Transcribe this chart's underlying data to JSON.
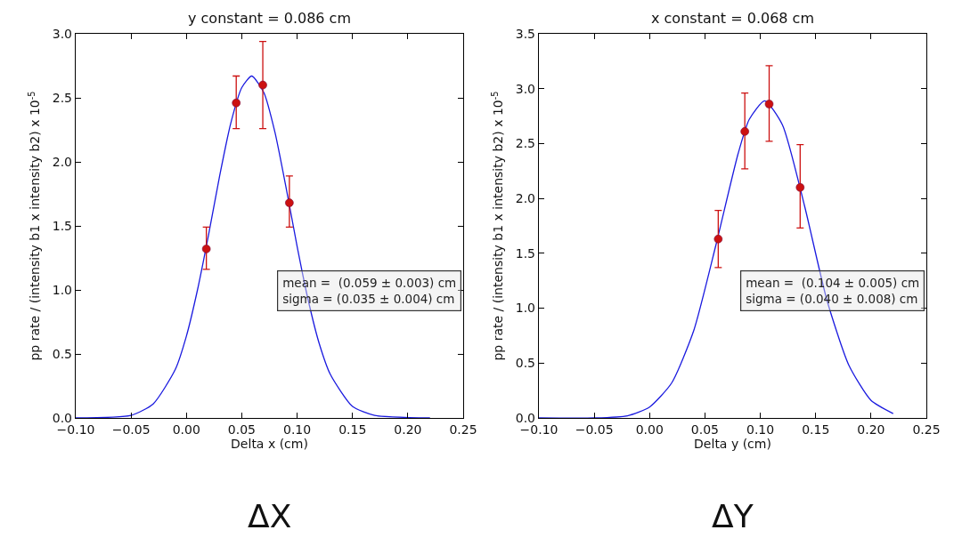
{
  "chart_data": [
    {
      "type": "scatter",
      "title": "y constant = 0.086 cm",
      "xlabel": "Delta x (cm)",
      "ylabel": "pp rate / (intensity b1 x intensity b2) x 10$^{-5}$",
      "xlim": [
        -0.1,
        0.25
      ],
      "xticks": [
        {
          "value": -0.1,
          "label": "−0.10"
        },
        {
          "value": -0.05,
          "label": "−0.05"
        },
        {
          "value": 0,
          "label": "0.00"
        },
        {
          "value": 0.05,
          "label": "0.05"
        },
        {
          "value": 0.1,
          "label": "0.10"
        },
        {
          "value": 0.15,
          "label": "0.15"
        },
        {
          "value": 0.2,
          "label": "0.20"
        },
        {
          "value": 0.25,
          "label": "0.25"
        }
      ],
      "ylim": [
        0,
        3.0
      ],
      "yticks": [
        {
          "value": 0,
          "label": "0.0"
        },
        0.5,
        {
          "value": 1,
          "label": "1.0"
        },
        1.5,
        {
          "value": 2,
          "label": "2.0"
        },
        2.5,
        {
          "value": 3,
          "label": "3.0"
        }
      ],
      "grid": false,
      "series": [
        {
          "type": "line",
          "color": "#1a1adf",
          "marker": "none",
          "line_style": "solid",
          "x": [
            -0.1,
            -0.05,
            -0.03,
            -0.01,
            0.0,
            0.01,
            0.02,
            0.03,
            0.04,
            0.05,
            0.059,
            0.07,
            0.08,
            0.09,
            0.1,
            0.11,
            0.12,
            0.13,
            0.15,
            0.17,
            0.22
          ],
          "values": [
            0.0,
            0.02,
            0.11,
            0.38,
            0.64,
            1.0,
            1.43,
            1.89,
            2.3,
            2.58,
            2.67,
            2.54,
            2.23,
            1.8,
            1.34,
            0.92,
            0.58,
            0.34,
            0.09,
            0.02,
            0.0
          ]
        },
        {
          "type": "scatter",
          "color": "#cc1111",
          "marker": "circle",
          "x": [
            0.018,
            0.045,
            0.069,
            0.093
          ],
          "values": [
            1.32,
            2.46,
            2.6,
            1.68
          ],
          "errors": [
            [
              1.16,
              1.49
            ],
            [
              2.26,
              2.67
            ],
            [
              2.26,
              2.94
            ],
            [
              1.49,
              1.89
            ]
          ]
        }
      ],
      "annotations": [
        "mean =  (0.059 ± 0.003) cm\nsigma = (0.035 ± 0.004) cm",
        "ΔX"
      ]
    },
    {
      "type": "scatter",
      "title": "x constant = 0.068 cm",
      "xlabel": "Delta y (cm)",
      "ylabel": "pp rate / (intensity b1 x intensity b2) x 10$^{-5}$",
      "xlim": [
        -0.1,
        0.25
      ],
      "xticks": [
        {
          "value": -0.1,
          "label": "−0.10"
        },
        {
          "value": -0.05,
          "label": "−0.05"
        },
        {
          "value": 0,
          "label": "0.00"
        },
        {
          "value": 0.05,
          "label": "0.05"
        },
        {
          "value": 0.1,
          "label": "0.10"
        },
        {
          "value": 0.15,
          "label": "0.15"
        },
        {
          "value": 0.2,
          "label": "0.20"
        },
        {
          "value": 0.25,
          "label": "0.25"
        }
      ],
      "ylim": [
        0,
        3.5
      ],
      "yticks": [
        {
          "value": 0,
          "label": "0.0"
        },
        0.5,
        {
          "value": 1,
          "label": "1.0"
        },
        1.5,
        {
          "value": 2,
          "label": "2.0"
        },
        2.5,
        {
          "value": 3,
          "label": "3.0"
        },
        3.5
      ],
      "grid": false,
      "series": [
        {
          "type": "line",
          "color": "#1a1adf",
          "marker": "none",
          "line_style": "solid",
          "x": [
            -0.1,
            -0.05,
            -0.02,
            0.0,
            0.02,
            0.04,
            0.06,
            0.08,
            0.09,
            0.104,
            0.12,
            0.14,
            0.16,
            0.18,
            0.2,
            0.22
          ],
          "values": [
            0.0,
            0.0,
            0.02,
            0.1,
            0.32,
            0.8,
            1.58,
            2.41,
            2.72,
            2.89,
            2.67,
            1.93,
            1.08,
            0.48,
            0.16,
            0.04
          ]
        },
        {
          "type": "scatter",
          "color": "#cc1111",
          "marker": "circle",
          "x": [
            0.062,
            0.086,
            0.108,
            0.136
          ],
          "values": [
            1.63,
            2.61,
            2.86,
            2.1
          ],
          "errors": [
            [
              1.37,
              1.89
            ],
            [
              2.27,
              2.96
            ],
            [
              2.52,
              3.21
            ],
            [
              1.73,
              2.49
            ]
          ]
        }
      ],
      "annotations": [
        "mean =  (0.104 ± 0.005) cm\nsigma = (0.040 ± 0.008) cm",
        "ΔY"
      ]
    }
  ]
}
